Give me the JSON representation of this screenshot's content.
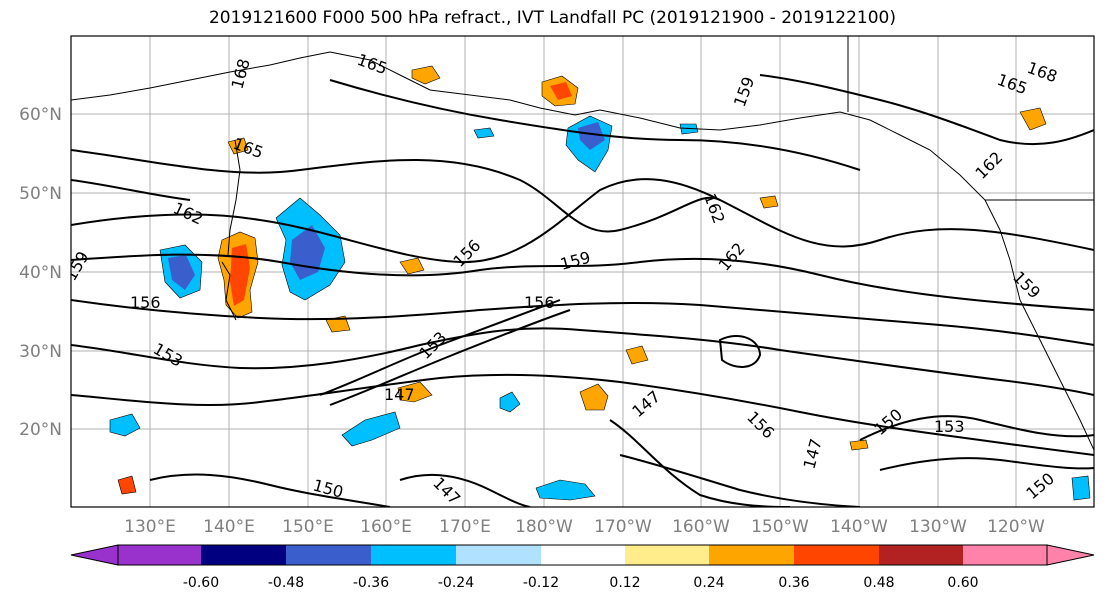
{
  "title": "2019121600 F000 500 hPa refract., IVT Landfall PC (2019121900 - 2019122100)",
  "map": {
    "lat_labels": [
      "60°N",
      "50°N",
      "40°N",
      "30°N",
      "20°N"
    ],
    "lon_labels": [
      "130°E",
      "140°E",
      "150°E",
      "160°E",
      "170°E",
      "180°W",
      "170°W",
      "160°W",
      "150°W",
      "140°W",
      "130°W",
      "120°W"
    ],
    "contour_labels": [
      "168",
      "165",
      "165",
      "162",
      "162",
      "162",
      "159",
      "159",
      "159",
      "156",
      "156",
      "156",
      "153",
      "153",
      "150",
      "150",
      "147",
      "147",
      "147",
      "168",
      "165",
      "162",
      "159",
      "156",
      "150",
      "147",
      "153"
    ],
    "colors": {
      "axis_label": "#7f7f7f",
      "contour": "#000000",
      "grid": "#b0b0b0"
    }
  },
  "colorbar": {
    "tick_labels": [
      "-0.60",
      "-0.48",
      "-0.36",
      "-0.24",
      "-0.12",
      "0.12",
      "0.24",
      "0.36",
      "0.48",
      "0.60"
    ],
    "colors": [
      "#9932cc",
      "#000080",
      "#3a5fcd",
      "#00bfff",
      "#b0e2ff",
      "#ffffff",
      "#ffec8b",
      "#ffa500",
      "#ff4500",
      "#b22222",
      "#ff82ab",
      "#ff82ab"
    ]
  }
}
